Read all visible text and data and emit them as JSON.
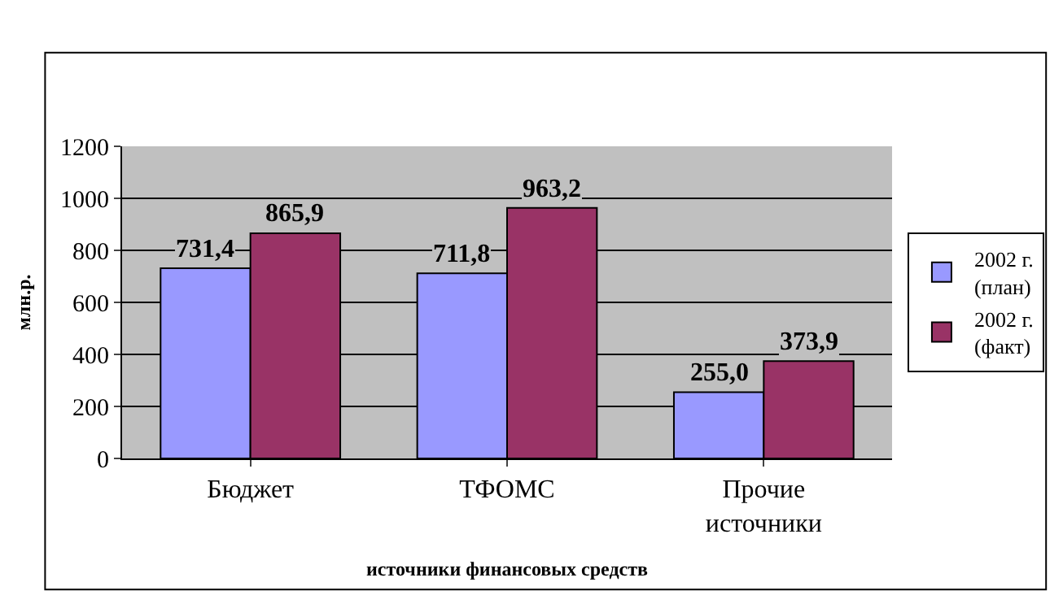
{
  "chart_data": {
    "type": "bar",
    "xlabel": "источники финансовых средств",
    "ylabel": "млн.р.",
    "categories": [
      "Бюджет",
      "ТФОМС",
      "Прочие источники"
    ],
    "series": [
      {
        "name": "2002 г. (план)",
        "color": "#9999ff",
        "values": [
          731.4,
          711.8,
          255.0
        ],
        "value_labels": [
          "731,4",
          "711,8",
          "255,0"
        ]
      },
      {
        "name": "2002 г. (факт)",
        "color": "#993366",
        "values": [
          865.9,
          963.2,
          373.9
        ],
        "value_labels": [
          "865,9",
          "963,2",
          "373,9"
        ]
      }
    ],
    "ylim": [
      0,
      1200
    ],
    "yticks": [
      0,
      200,
      400,
      600,
      800,
      1000,
      1200
    ],
    "grid": "y",
    "legend": "right"
  }
}
